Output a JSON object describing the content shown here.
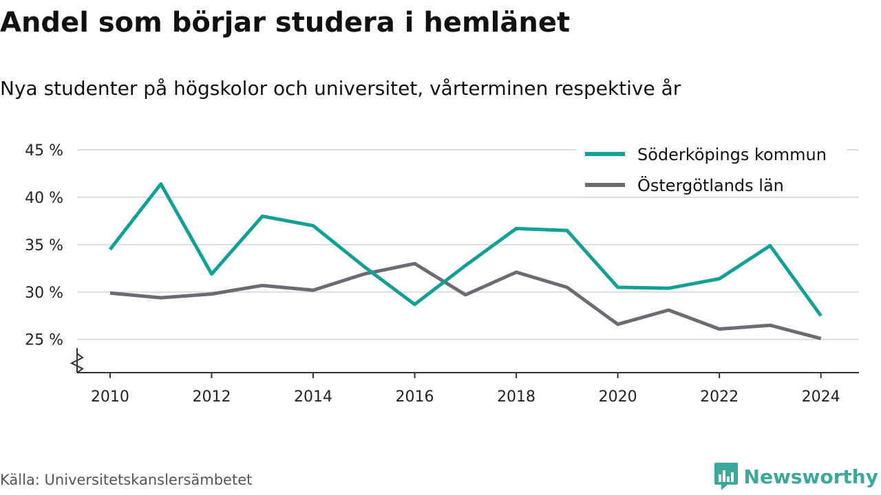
{
  "title": "Andel som börjar studera i hemlänet",
  "subtitle": "Nya studenter på högskolor och universitet, vårterminen respektive år",
  "source": "Källa: Universitetskanslersämbetet",
  "brand": {
    "name": "Newsworthy",
    "color": "#3aa89a",
    "icon": "newsworthy-logo-icon"
  },
  "chart_data": {
    "type": "line",
    "x": [
      2010,
      2011,
      2012,
      2013,
      2014,
      2015,
      2016,
      2017,
      2018,
      2019,
      2020,
      2021,
      2022,
      2023,
      2024
    ],
    "series": [
      {
        "name": "Söderköpings kommun",
        "color": "#12a096",
        "values": [
          34.5,
          41.4,
          31.9,
          38.0,
          37.0,
          32.7,
          28.7,
          32.8,
          36.7,
          36.5,
          30.5,
          30.4,
          31.4,
          34.9,
          27.5
        ]
      },
      {
        "name": "Östergötlands län",
        "color": "#6b6b73",
        "values": [
          29.9,
          29.4,
          29.8,
          30.7,
          30.2,
          31.9,
          33.0,
          29.7,
          32.1,
          30.5,
          26.6,
          28.1,
          26.1,
          26.5,
          25.1
        ]
      }
    ],
    "y_ticks": [
      {
        "value": 25,
        "label": "25 %"
      },
      {
        "value": 30,
        "label": "30 %"
      },
      {
        "value": 35,
        "label": "35 %"
      },
      {
        "value": 40,
        "label": "40 %"
      },
      {
        "value": 45,
        "label": "45 %"
      }
    ],
    "x_ticks": [
      {
        "value": 2010,
        "label": "2010"
      },
      {
        "value": 2012,
        "label": "2012"
      },
      {
        "value": 2014,
        "label": "2014"
      },
      {
        "value": 2016,
        "label": "2016"
      },
      {
        "value": 2018,
        "label": "2018"
      },
      {
        "value": 2020,
        "label": "2020"
      },
      {
        "value": 2022,
        "label": "2022"
      },
      {
        "value": 2024,
        "label": "2024"
      }
    ],
    "ylim": [
      21.5,
      45
    ],
    "xlim": [
      2009.35,
      2024.75
    ],
    "y_axis_break": true,
    "grid": true,
    "legend_position": "top-right",
    "gridline_color": "#dcdcdc",
    "axis_color": "#333333"
  }
}
